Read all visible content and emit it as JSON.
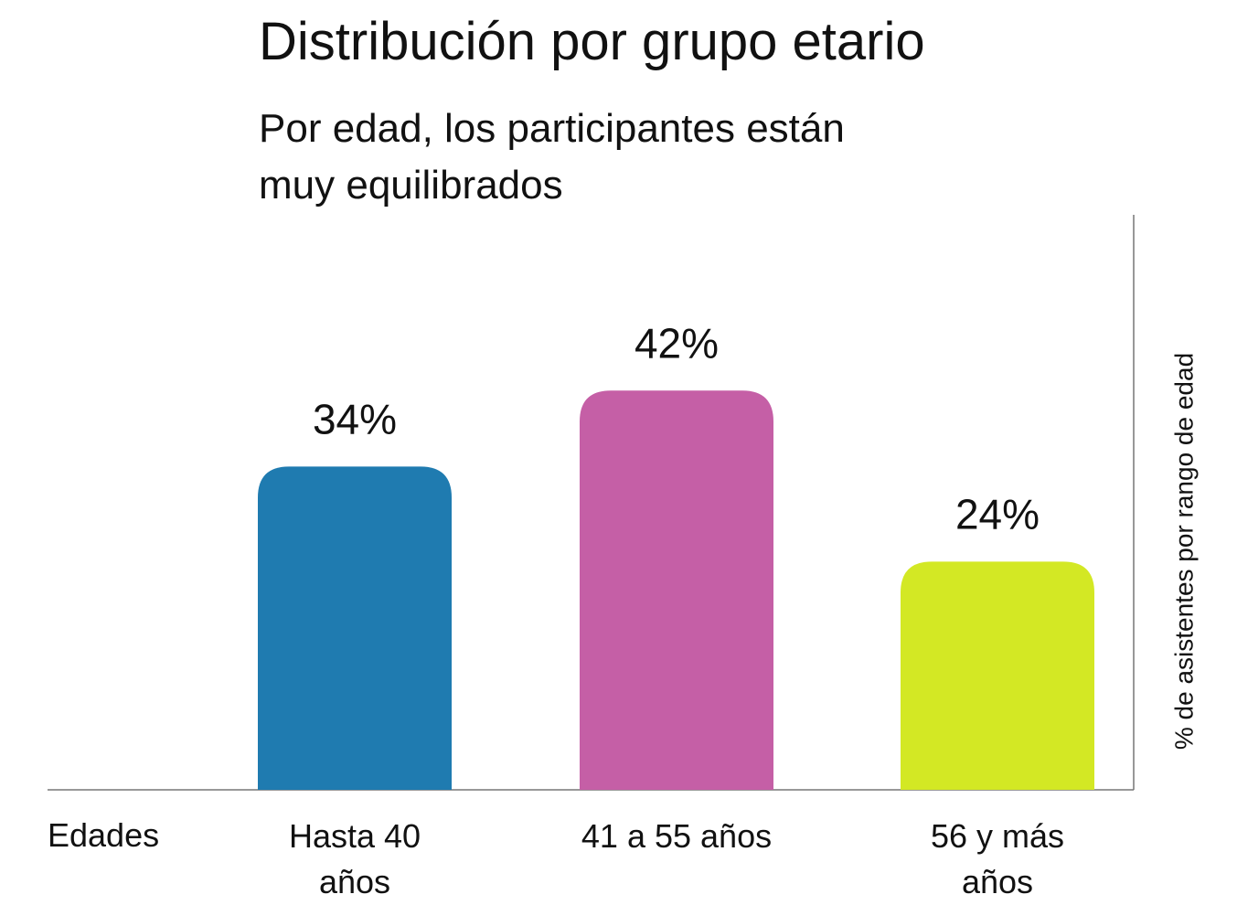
{
  "chart_data": {
    "type": "bar",
    "title": "Distribución por grupo etario",
    "subtitle": "Por edad, los participantes están muy equilibrados",
    "x_label": "Edades",
    "y_label": "% de asistentes por rango de edad",
    "categories": [
      "Hasta 40 años",
      "41 a 55 años",
      "56 y más años"
    ],
    "values": [
      34,
      42,
      24
    ],
    "value_labels": [
      "34%",
      "42%",
      "24%"
    ],
    "colors": [
      "#1f7bb0",
      "#c55fa6",
      "#d3e824"
    ],
    "ylim": [
      0,
      60
    ]
  }
}
